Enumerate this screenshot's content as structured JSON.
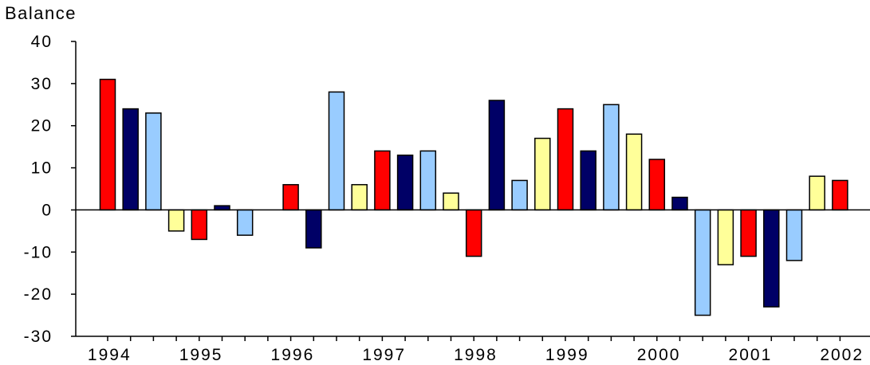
{
  "chart_data": {
    "type": "bar",
    "ylabel": "Balance",
    "xlabel": "",
    "ylim": [
      -30,
      40
    ],
    "yticks": [
      -30,
      -20,
      -10,
      0,
      10,
      20,
      30,
      40
    ],
    "ytick_labels": [
      "-30",
      "-20",
      "-10",
      "0",
      "10",
      "20",
      "30",
      "40"
    ],
    "year_labels": [
      "1994",
      "1995",
      "1996",
      "1997",
      "1998",
      "1999",
      "2000",
      "2001",
      "2002"
    ],
    "quarter_colors": {
      "Q1": "#ff0000",
      "Q2": "#000066",
      "Q3": "#99ccff",
      "Q4": "#ffff99"
    },
    "grid": false,
    "legend": "none",
    "bars": [
      {
        "year": "1994",
        "quarter": "Q1",
        "value": 31
      },
      {
        "year": "1994",
        "quarter": "Q2",
        "value": 24
      },
      {
        "year": "1994",
        "quarter": "Q3",
        "value": 23
      },
      {
        "year": "1994",
        "quarter": "Q4",
        "value": -5
      },
      {
        "year": "1995",
        "quarter": "Q1",
        "value": -7
      },
      {
        "year": "1995",
        "quarter": "Q2",
        "value": 1
      },
      {
        "year": "1995",
        "quarter": "Q3",
        "value": -6
      },
      {
        "year": "1995",
        "quarter": "Q4",
        "value": 0
      },
      {
        "year": "1996",
        "quarter": "Q1",
        "value": 6
      },
      {
        "year": "1996",
        "quarter": "Q2",
        "value": -9
      },
      {
        "year": "1996",
        "quarter": "Q3",
        "value": 28
      },
      {
        "year": "1996",
        "quarter": "Q4",
        "value": 6
      },
      {
        "year": "1997",
        "quarter": "Q1",
        "value": 14
      },
      {
        "year": "1997",
        "quarter": "Q2",
        "value": 13
      },
      {
        "year": "1997",
        "quarter": "Q3",
        "value": 14
      },
      {
        "year": "1997",
        "quarter": "Q4",
        "value": 4
      },
      {
        "year": "1998",
        "quarter": "Q1",
        "value": -11
      },
      {
        "year": "1998",
        "quarter": "Q2",
        "value": 26
      },
      {
        "year": "1998",
        "quarter": "Q3",
        "value": 7
      },
      {
        "year": "1998",
        "quarter": "Q4",
        "value": 17
      },
      {
        "year": "1999",
        "quarter": "Q1",
        "value": 24
      },
      {
        "year": "1999",
        "quarter": "Q2",
        "value": 14
      },
      {
        "year": "1999",
        "quarter": "Q3",
        "value": 25
      },
      {
        "year": "1999",
        "quarter": "Q4",
        "value": 18
      },
      {
        "year": "2000",
        "quarter": "Q1",
        "value": 12
      },
      {
        "year": "2000",
        "quarter": "Q2",
        "value": 3
      },
      {
        "year": "2000",
        "quarter": "Q3",
        "value": -25
      },
      {
        "year": "2000",
        "quarter": "Q4",
        "value": -13
      },
      {
        "year": "2001",
        "quarter": "Q1",
        "value": -11
      },
      {
        "year": "2001",
        "quarter": "Q2",
        "value": -23
      },
      {
        "year": "2001",
        "quarter": "Q3",
        "value": -12
      },
      {
        "year": "2001",
        "quarter": "Q4",
        "value": 8
      },
      {
        "year": "2002",
        "quarter": "Q1",
        "value": 7
      }
    ]
  }
}
